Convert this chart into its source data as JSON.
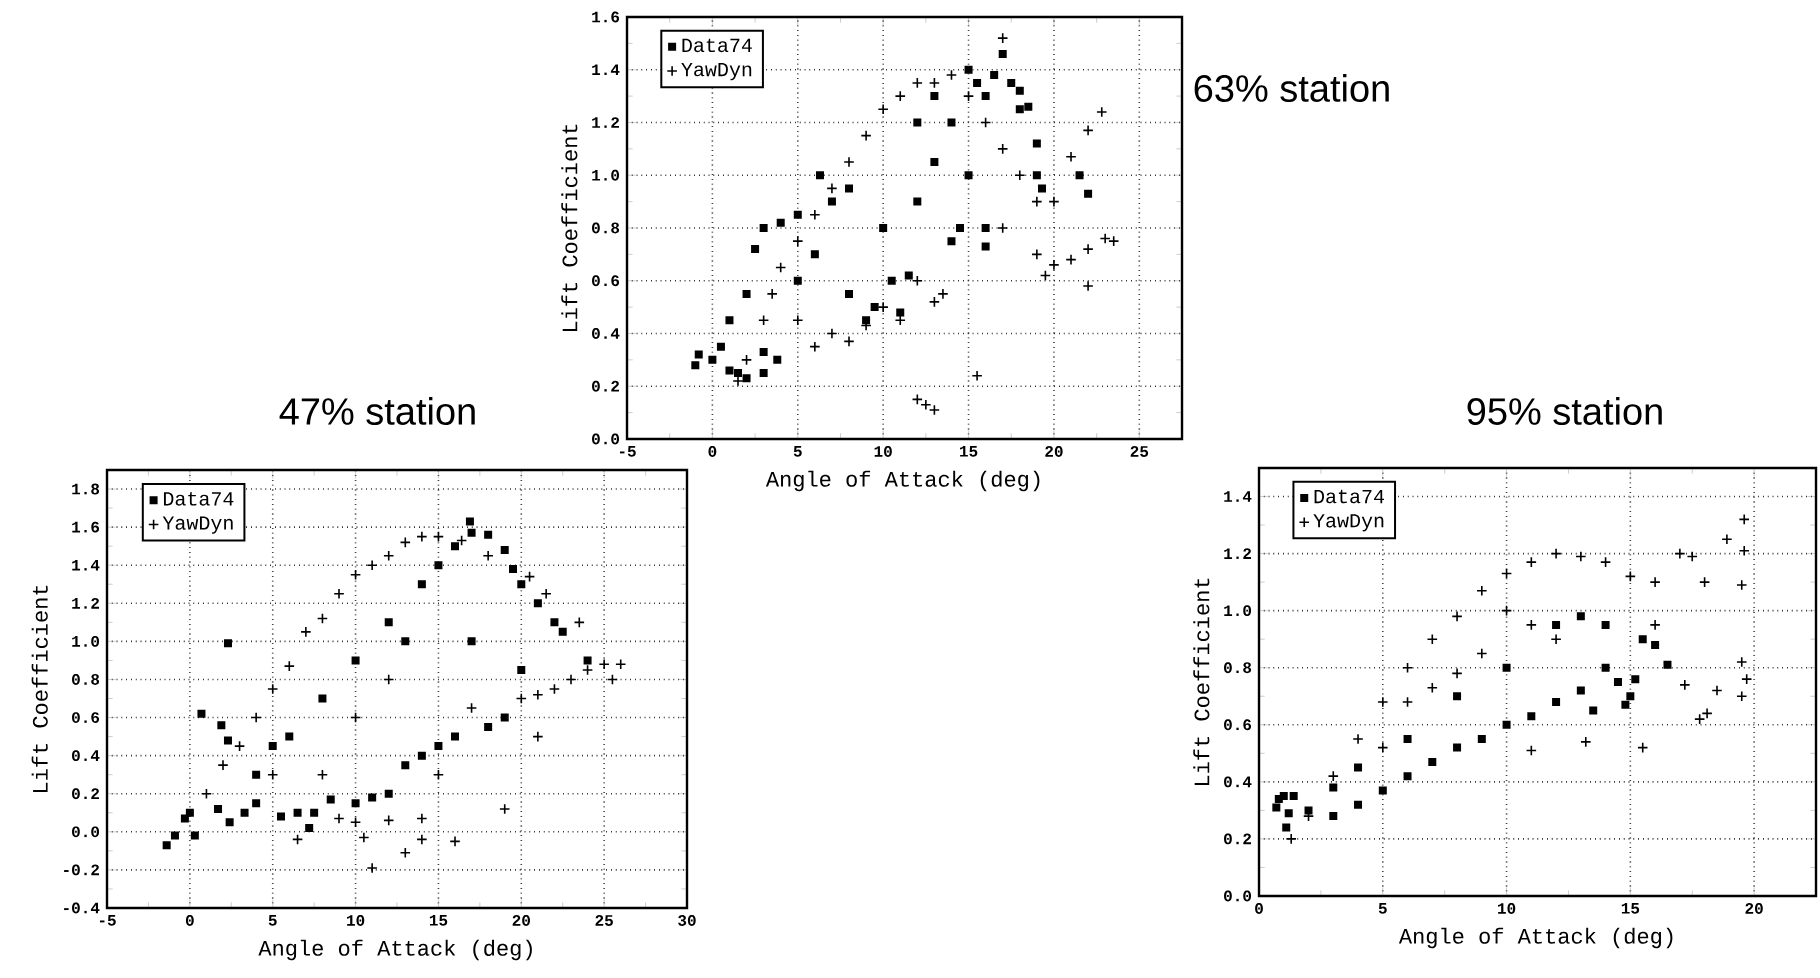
{
  "chart_data": [
    {
      "type": "scatter",
      "title": "63% station",
      "xlabel": "Angle of Attack (deg)",
      "ylabel": "Lift Coefficient",
      "xlim": [
        -5,
        27.5
      ],
      "ylim": [
        0,
        1.6
      ],
      "xticks": [
        -5,
        0,
        5,
        10,
        15,
        20,
        25
      ],
      "yticks": [
        {
          "value": 0,
          "label": "0.0"
        },
        {
          "value": 0.2,
          "label": "0.2"
        },
        {
          "value": 0.4,
          "label": "0.4"
        },
        {
          "value": 0.6,
          "label": "0.6"
        },
        {
          "value": 0.8,
          "label": "0.8"
        },
        {
          "value": 1.0,
          "label": "1.0"
        },
        {
          "value": 1.2,
          "label": "1.2"
        },
        {
          "value": 1.4,
          "label": "1.4"
        },
        {
          "value": 1.6,
          "label": "1.6"
        }
      ],
      "grid": true,
      "legend": "top left",
      "series": [
        {
          "name": "Data74",
          "color": "#000000",
          "marker": "square",
          "x": [
            -1,
            -0.8,
            0,
            0.5,
            1,
            1.5,
            2,
            3,
            3.8,
            3,
            1,
            2,
            2.5,
            3,
            4,
            5,
            6.3,
            5,
            6,
            7,
            8,
            8,
            9,
            9.5,
            10,
            10.5,
            11,
            11.5,
            12,
            12,
            13,
            13,
            14,
            14,
            14.5,
            15,
            15,
            15.5,
            16,
            16.5,
            17,
            17.5,
            18,
            16,
            16,
            18,
            18.5,
            19,
            19.3,
            19,
            21.5,
            22
          ],
          "values": [
            0.28,
            0.32,
            0.3,
            0.35,
            0.26,
            0.25,
            0.23,
            0.25,
            0.3,
            0.33,
            0.45,
            0.55,
            0.72,
            0.8,
            0.82,
            0.85,
            1.0,
            0.6,
            0.7,
            0.9,
            0.95,
            0.55,
            0.45,
            0.5,
            0.8,
            0.6,
            0.48,
            0.62,
            1.2,
            0.9,
            1.3,
            1.05,
            1.2,
            0.75,
            0.8,
            1.0,
            1.4,
            1.35,
            1.3,
            1.38,
            1.46,
            1.35,
            1.32,
            0.8,
            0.73,
            1.25,
            1.26,
            1.12,
            0.95,
            1.0,
            1.0,
            0.93
          ]
        },
        {
          "name": "YawDyn",
          "color": "#000000",
          "marker": "cross",
          "x": [
            1.5,
            2,
            3,
            3.5,
            4,
            5,
            6,
            7,
            8,
            9,
            10,
            11,
            12,
            13,
            14,
            15,
            16,
            17,
            17,
            18,
            19,
            19,
            19.5,
            20,
            21,
            22,
            23,
            23.5,
            22.8,
            22,
            21,
            20,
            17,
            7,
            8,
            9,
            10,
            12,
            13,
            13.5,
            12,
            12.5,
            13,
            15.5,
            5,
            6,
            11,
            22
          ],
          "values": [
            0.22,
            0.3,
            0.45,
            0.55,
            0.65,
            0.75,
            0.85,
            0.95,
            1.05,
            1.15,
            1.25,
            1.3,
            1.35,
            1.35,
            1.38,
            1.3,
            1.2,
            1.52,
            1.1,
            1.0,
            0.9,
            0.7,
            0.62,
            0.66,
            0.68,
            0.72,
            0.76,
            0.75,
            1.24,
            1.17,
            1.07,
            0.9,
            0.8,
            0.4,
            0.37,
            0.43,
            0.5,
            0.6,
            0.52,
            0.55,
            0.15,
            0.13,
            0.11,
            0.24,
            0.45,
            0.35,
            0.45,
            0.58
          ]
        }
      ]
    },
    {
      "type": "scatter",
      "title": "47% station",
      "xlabel": "Angle of Attack (deg)",
      "ylabel": "Lift Coefficient",
      "xlim": [
        -5,
        30
      ],
      "ylim": [
        -0.4,
        1.9
      ],
      "xticks": [
        -5,
        0,
        5,
        10,
        15,
        20,
        25,
        30
      ],
      "yticks": [
        {
          "value": -0.4,
          "label": "-0.4"
        },
        {
          "value": -0.2,
          "label": "-0.2"
        },
        {
          "value": 0,
          "label": "0.0"
        },
        {
          "value": 0.2,
          "label": "0.2"
        },
        {
          "value": 0.4,
          "label": "0.4"
        },
        {
          "value": 0.6,
          "label": "0.6"
        },
        {
          "value": 0.8,
          "label": "0.8"
        },
        {
          "value": 1.0,
          "label": "1.0"
        },
        {
          "value": 1.2,
          "label": "1.2"
        },
        {
          "value": 1.4,
          "label": "1.4"
        },
        {
          "value": 1.6,
          "label": "1.6"
        },
        {
          "value": 1.8,
          "label": "1.8"
        }
      ],
      "grid": true,
      "legend": "top left",
      "series": [
        {
          "name": "Data74",
          "color": "#000000",
          "marker": "square",
          "x": [
            -1.4,
            -0.9,
            0.3,
            -0.3,
            0,
            0.7,
            1.9,
            2.3,
            2.3,
            1.7,
            2.4,
            3.3,
            4,
            5.5,
            6.5,
            7.2,
            7.5,
            8.5,
            10,
            11,
            12,
            13,
            14,
            15,
            16,
            18,
            19,
            5,
            8,
            10,
            12,
            14,
            15,
            16,
            16.9,
            17,
            18,
            19,
            19.5,
            20,
            21,
            22,
            22.5,
            24,
            20,
            17,
            13,
            6,
            4
          ],
          "values": [
            -0.07,
            -0.02,
            -0.02,
            0.07,
            0.1,
            0.62,
            0.56,
            0.99,
            0.48,
            0.12,
            0.05,
            0.1,
            0.15,
            0.08,
            0.1,
            0.02,
            0.1,
            0.17,
            0.15,
            0.18,
            0.2,
            0.35,
            0.4,
            0.45,
            0.5,
            0.55,
            0.6,
            0.45,
            0.7,
            0.9,
            1.1,
            1.3,
            1.4,
            1.5,
            1.63,
            1.57,
            1.56,
            1.48,
            1.38,
            1.3,
            1.2,
            1.1,
            1.05,
            0.9,
            0.85,
            1.0,
            1.0,
            0.5,
            0.3
          ]
        },
        {
          "name": "YawDyn",
          "color": "#000000",
          "marker": "cross",
          "x": [
            1,
            2,
            3,
            4,
            5,
            6,
            7,
            8,
            9,
            10,
            11,
            12,
            13,
            14,
            15,
            16.4,
            18,
            20.5,
            21.5,
            23.5,
            20,
            21,
            22,
            23,
            24,
            25,
            26,
            25.5,
            21,
            19,
            14,
            14,
            13,
            11,
            10.5,
            10,
            9,
            12,
            6.5,
            8,
            16,
            15,
            17,
            5,
            10,
            12
          ],
          "values": [
            0.2,
            0.35,
            0.45,
            0.6,
            0.75,
            0.87,
            1.05,
            1.12,
            1.25,
            1.35,
            1.4,
            1.45,
            1.52,
            1.55,
            1.55,
            1.53,
            1.45,
            1.34,
            1.25,
            1.1,
            0.7,
            0.72,
            0.75,
            0.8,
            0.85,
            0.88,
            0.88,
            0.8,
            0.5,
            0.12,
            0.07,
            -0.04,
            -0.11,
            -0.19,
            -0.03,
            0.05,
            0.07,
            0.06,
            -0.04,
            0.3,
            -0.05,
            0.3,
            0.65,
            0.3,
            0.6,
            0.8
          ]
        }
      ]
    },
    {
      "type": "scatter",
      "title": "95% station",
      "xlabel": "Angle of Attack (deg)",
      "ylabel": "Lift Coefficient",
      "xlim": [
        0,
        22.5
      ],
      "ylim": [
        0,
        1.5
      ],
      "xticks": [
        0,
        5,
        10,
        15,
        20
      ],
      "yticks": [
        {
          "value": 0,
          "label": "0.0"
        },
        {
          "value": 0.2,
          "label": "0.2"
        },
        {
          "value": 0.4,
          "label": "0.4"
        },
        {
          "value": 0.6,
          "label": "0.6"
        },
        {
          "value": 0.8,
          "label": "0.8"
        },
        {
          "value": 1.0,
          "label": "1.0"
        },
        {
          "value": 1.2,
          "label": "1.2"
        },
        {
          "value": 1.4,
          "label": "1.4"
        }
      ],
      "grid": true,
      "legend": "top left",
      "series": [
        {
          "name": "Data74",
          "color": "#000000",
          "marker": "square",
          "x": [
            0.7,
            0.8,
            1,
            1.1,
            1.2,
            1.4,
            2,
            3,
            4,
            5,
            6,
            7,
            8,
            9,
            10,
            11,
            12,
            13,
            13.5,
            14,
            14.5,
            14.8,
            15,
            15.2,
            15.5,
            16,
            16.5,
            12,
            10,
            8,
            6,
            4,
            3,
            13,
            14
          ],
          "values": [
            0.31,
            0.34,
            0.35,
            0.24,
            0.29,
            0.35,
            0.3,
            0.28,
            0.32,
            0.37,
            0.42,
            0.47,
            0.52,
            0.55,
            0.6,
            0.63,
            0.68,
            0.72,
            0.65,
            0.8,
            0.75,
            0.67,
            0.7,
            0.76,
            0.9,
            0.88,
            0.81,
            0.95,
            0.8,
            0.7,
            0.55,
            0.45,
            0.38,
            0.98,
            0.95
          ]
        },
        {
          "name": "YawDyn",
          "color": "#000000",
          "marker": "cross",
          "x": [
            1.3,
            2,
            3,
            4,
            5,
            6,
            7,
            8,
            9,
            10,
            11,
            12,
            13,
            14,
            15,
            16,
            17,
            17.5,
            18,
            18.9,
            19.6,
            19.6,
            19.5,
            19.5,
            19.7,
            19.5,
            18.5,
            17.8,
            18.1,
            17.2,
            16,
            15.5,
            11,
            13.2,
            10,
            11,
            12,
            8,
            6,
            5,
            7,
            9
          ],
          "values": [
            0.2,
            0.28,
            0.42,
            0.55,
            0.68,
            0.8,
            0.9,
            0.98,
            1.07,
            1.13,
            1.17,
            1.2,
            1.19,
            1.17,
            1.12,
            1.1,
            1.2,
            1.19,
            1.1,
            1.25,
            1.32,
            1.21,
            1.09,
            0.82,
            0.76,
            0.7,
            0.72,
            0.62,
            0.64,
            0.74,
            0.95,
            0.52,
            0.51,
            0.54,
            1.0,
            0.95,
            0.9,
            0.78,
            0.68,
            0.52,
            0.73,
            0.85
          ]
        }
      ]
    }
  ]
}
